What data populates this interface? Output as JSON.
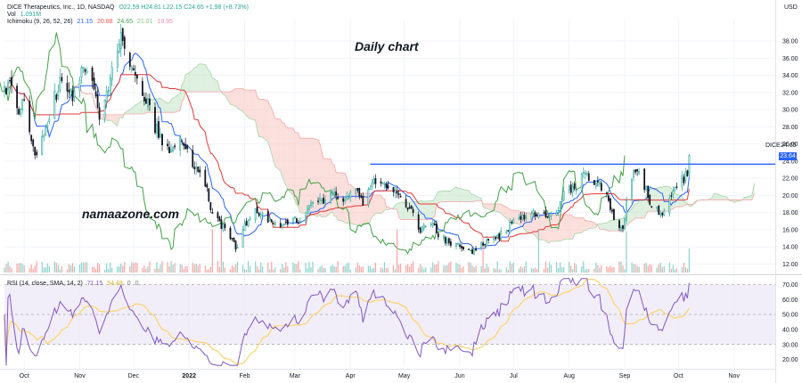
{
  "header": {
    "title": "DICE Therapeutics, Inc., 1D, NASDAQ",
    "ohlc": "O22.59 H24.81 L22.15 C24.65 +1.98 (+8.73%)",
    "vol_label": "Vol",
    "vol_value": "1.091M",
    "ichimoku_label": "Ichimoku (9, 26, 52, 26)",
    "ichimoku_values": [
      "21.15",
      "20.88",
      "24.65",
      "21.01",
      "19.95"
    ],
    "rsi_label": "RSI (14, close, SMA, 14, 2)",
    "rsi_values": [
      "71.15",
      "54.48",
      "0",
      "0"
    ],
    "currency": "USD"
  },
  "annotations": {
    "daily": "Daily chart",
    "brand": "namaazone.com"
  },
  "price_panel": {
    "ticker_label": "DICE",
    "last_price_label": "24.65",
    "level_label": "23.64",
    "horizontal_level": 23.64,
    "y_ticks": [
      "12.00",
      "14.00",
      "16.00",
      "18.00",
      "20.00",
      "22.00",
      "24.00",
      "26.00",
      "28.00",
      "30.00",
      "32.00",
      "34.00",
      "36.00",
      "38.00"
    ]
  },
  "rsi_panel": {
    "y_ticks": [
      "20.00",
      "30.00",
      "40.00",
      "50.00",
      "60.00",
      "70.00"
    ],
    "upper_band": 70,
    "middle_band": 50,
    "lower_band": 30
  },
  "x_ticks": [
    "Oct",
    "Nov",
    "Dec",
    "2022",
    "Feb",
    "Mar",
    "Apr",
    "May",
    "Jun",
    "Jul",
    "Aug",
    "Sep",
    "Oct",
    "Nov"
  ],
  "colors": {
    "up": "#26a69a",
    "down": "#131722",
    "level_line": "#2962ff",
    "conversion": "#2962ff",
    "base": "#e53935",
    "lagging": "#43a047",
    "kumo_bear": "#f8c9c4",
    "kumo_bull": "#c8e6c9",
    "rsi_line": "#7e57c2",
    "rsi_ma": "#f9d36d",
    "rsi_band": "#ede7f6",
    "vol_up": "#7fcdc4",
    "vol_down": "#f49b9b"
  },
  "chart_data": {
    "type": "candlestick",
    "symbol": "DICE",
    "interval": "1D",
    "title": "Daily chart",
    "price_ylim": [
      11,
      40.5
    ],
    "rsi_ylim": [
      15,
      75
    ],
    "close_anchors": [
      [
        "Sep 20 2021",
        32.0
      ],
      [
        "Sep 24 2021",
        33.5
      ],
      [
        "Sep 28 2021",
        30.0
      ],
      [
        "Oct 1 2021",
        31.5
      ],
      [
        "Oct 6 2021",
        26.0
      ],
      [
        "Oct 8 2021",
        24.5
      ],
      [
        "Oct 13 2021",
        28.0
      ],
      [
        "Oct 18 2021",
        31.5
      ],
      [
        "Oct 22 2021",
        33.5
      ],
      [
        "Oct 28 2021",
        31.5
      ],
      [
        "Nov 3 2021",
        34.5
      ],
      [
        "Nov 8 2021",
        33.0
      ],
      [
        "Nov 12 2021",
        29.5
      ],
      [
        "Nov 17 2021",
        33.0
      ],
      [
        "Nov 22 2021",
        36.5
      ],
      [
        "Nov 24 2021",
        38.8
      ],
      [
        "Nov 29 2021",
        35.0
      ],
      [
        "Dec 3 2021",
        33.5
      ],
      [
        "Dec 8 2021",
        31.0
      ],
      [
        "Dec 13 2021",
        28.0
      ],
      [
        "Dec 17 2021",
        26.5
      ],
      [
        "Dec 22 2021",
        25.0
      ],
      [
        "Dec 28 2021",
        26.5
      ],
      [
        "Dec 31 2021",
        25.5
      ],
      [
        "Jan 5 2022",
        23.0
      ],
      [
        "Jan 10 2022",
        21.0
      ],
      [
        "Jan 14 2022",
        18.0
      ],
      [
        "Jan 19 2022",
        16.5
      ],
      [
        "Jan 24 2022",
        15.0
      ],
      [
        "Jan 27 2022",
        14.0
      ],
      [
        "Feb 1 2022",
        16.5
      ],
      [
        "Feb 7 2022",
        18.0
      ],
      [
        "Feb 14 2022",
        17.2
      ],
      [
        "Feb 22 2022",
        16.3
      ],
      [
        "Feb 28 2022",
        17.5
      ],
      [
        "Mar 4 2022",
        17.0
      ],
      [
        "Mar 10 2022",
        19.0
      ],
      [
        "Mar 16 2022",
        19.3
      ],
      [
        "Mar 22 2022",
        20.5
      ],
      [
        "Mar 28 2022",
        19.5
      ],
      [
        "Apr 4 2022",
        21.0
      ],
      [
        "Apr 8 2022",
        19.0
      ],
      [
        "Apr 14 2022",
        21.5
      ],
      [
        "Apr 19 2022",
        22.0
      ],
      [
        "Apr 22 2022",
        21.0
      ],
      [
        "Apr 28 2022",
        20.0
      ],
      [
        "May 4 2022",
        18.5
      ],
      [
        "May 10 2022",
        16.0
      ],
      [
        "May 16 2022",
        17.0
      ],
      [
        "May 20 2022",
        15.5
      ],
      [
        "May 26 2022",
        14.5
      ],
      [
        "Jun 2 2022",
        14.0
      ],
      [
        "Jun 9 2022",
        13.5
      ],
      [
        "Jun 15 2022",
        14.5
      ],
      [
        "Jun 21 2022",
        15.0
      ],
      [
        "Jun 27 2022",
        16.0
      ],
      [
        "Jul 1 2022",
        17.0
      ],
      [
        "Jul 7 2022",
        17.5
      ],
      [
        "Jul 13 2022",
        18.0
      ],
      [
        "Jul 19 2022",
        17.8
      ],
      [
        "Jul 25 2022",
        18.0
      ],
      [
        "Jul 29 2022",
        20.0
      ],
      [
        "Aug 4 2022",
        21.0
      ],
      [
        "Aug 10 2022",
        22.5
      ],
      [
        "Aug 16 2022",
        21.5
      ],
      [
        "Aug 22 2022",
        20.0
      ],
      [
        "Aug 26 2022",
        17.5
      ],
      [
        "Aug 31 2022",
        16.0
      ],
      [
        "Sep 2 2022",
        19.0
      ],
      [
        "Sep 7 2022",
        23.0
      ],
      [
        "Sep 12 2022",
        21.0
      ],
      [
        "Sep 16 2022",
        19.0
      ],
      [
        "Sep 21 2022",
        18.0
      ],
      [
        "Sep 26 2022",
        19.5
      ],
      [
        "Sep 30 2022",
        21.0
      ],
      [
        "Oct 4 2022",
        22.0
      ],
      [
        "Oct 6 2022",
        22.67
      ],
      [
        "Oct 7 2022",
        24.65
      ]
    ],
    "last_candle": {
      "date": "Oct 7 2022",
      "open": 22.59,
      "high": 24.81,
      "low": 22.15,
      "close": 24.65
    },
    "ichimoku": {
      "conversion": 21.15,
      "base": 20.88,
      "lagging": 24.65,
      "leading_a": 21.01,
      "leading_b": 19.95
    },
    "rsi_last": 71.15,
    "rsi_ma_last": 54.48,
    "volume_last": "1.091M",
    "volume_spike_dates": [
      "Jan 14 2022",
      "Jan 19 2022",
      "Apr 27 2022",
      "Jun 14 2022",
      "Jul 15 2022",
      "Sep 2 2022"
    ]
  }
}
